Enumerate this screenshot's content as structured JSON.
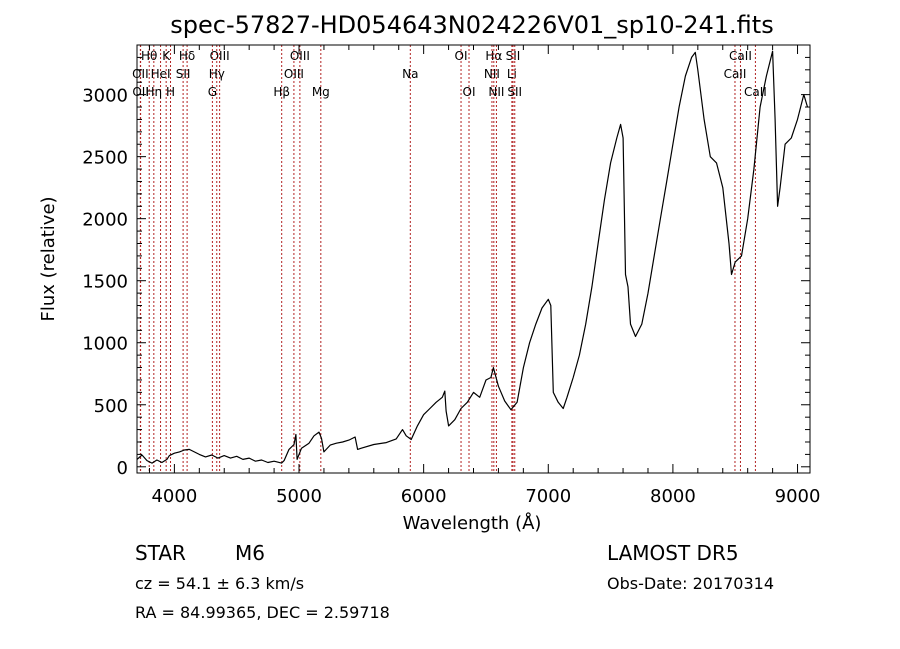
{
  "chart_data": {
    "type": "line",
    "title": "spec-57827-HD054643N024226V01_sp10-241.fits",
    "xlabel": "Wavelength (Å)",
    "ylabel": "Flux (relative)",
    "xlim": [
      3700,
      9100
    ],
    "ylim": [
      -50,
      3400
    ],
    "x_ticks": [
      4000,
      5000,
      6000,
      7000,
      8000,
      9000
    ],
    "y_ticks": [
      0,
      500,
      1000,
      1500,
      2000,
      2500,
      3000
    ],
    "grid": false,
    "line_color": "#000000",
    "marker_color": "#b22222",
    "series": [
      {
        "values": [
          [
            3700,
            60
          ],
          [
            3740,
            95
          ],
          [
            3780,
            50
          ],
          [
            3820,
            30
          ],
          [
            3860,
            55
          ],
          [
            3900,
            35
          ],
          [
            3940,
            60
          ],
          [
            3960,
            90
          ],
          [
            4000,
            110
          ],
          [
            4040,
            120
          ],
          [
            4080,
            135
          ],
          [
            4120,
            140
          ],
          [
            4160,
            120
          ],
          [
            4200,
            100
          ],
          [
            4250,
            80
          ],
          [
            4300,
            95
          ],
          [
            4350,
            70
          ],
          [
            4400,
            90
          ],
          [
            4450,
            70
          ],
          [
            4500,
            85
          ],
          [
            4550,
            60
          ],
          [
            4600,
            70
          ],
          [
            4650,
            45
          ],
          [
            4700,
            55
          ],
          [
            4750,
            35
          ],
          [
            4800,
            45
          ],
          [
            4860,
            30
          ],
          [
            4880,
            50
          ],
          [
            4920,
            140
          ],
          [
            4960,
            180
          ],
          [
            4975,
            260
          ],
          [
            4985,
            60
          ],
          [
            5020,
            150
          ],
          [
            5080,
            190
          ],
          [
            5120,
            250
          ],
          [
            5160,
            280
          ],
          [
            5180,
            230
          ],
          [
            5200,
            120
          ],
          [
            5250,
            175
          ],
          [
            5300,
            190
          ],
          [
            5350,
            200
          ],
          [
            5400,
            215
          ],
          [
            5450,
            240
          ],
          [
            5470,
            140
          ],
          [
            5500,
            150
          ],
          [
            5600,
            180
          ],
          [
            5700,
            195
          ],
          [
            5780,
            225
          ],
          [
            5830,
            300
          ],
          [
            5860,
            250
          ],
          [
            5900,
            220
          ],
          [
            5950,
            330
          ],
          [
            6000,
            420
          ],
          [
            6050,
            470
          ],
          [
            6100,
            520
          ],
          [
            6150,
            560
          ],
          [
            6170,
            610
          ],
          [
            6180,
            450
          ],
          [
            6200,
            330
          ],
          [
            6250,
            380
          ],
          [
            6300,
            470
          ],
          [
            6350,
            520
          ],
          [
            6400,
            600
          ],
          [
            6450,
            560
          ],
          [
            6500,
            700
          ],
          [
            6540,
            720
          ],
          [
            6560,
            800
          ],
          [
            6600,
            650
          ],
          [
            6650,
            530
          ],
          [
            6700,
            460
          ],
          [
            6750,
            520
          ],
          [
            6800,
            800
          ],
          [
            6850,
            1000
          ],
          [
            6900,
            1150
          ],
          [
            6950,
            1280
          ],
          [
            7000,
            1350
          ],
          [
            7020,
            1300
          ],
          [
            7040,
            600
          ],
          [
            7080,
            520
          ],
          [
            7120,
            470
          ],
          [
            7150,
            560
          ],
          [
            7200,
            720
          ],
          [
            7250,
            900
          ],
          [
            7300,
            1150
          ],
          [
            7350,
            1450
          ],
          [
            7400,
            1800
          ],
          [
            7450,
            2150
          ],
          [
            7500,
            2450
          ],
          [
            7550,
            2650
          ],
          [
            7580,
            2760
          ],
          [
            7600,
            2650
          ],
          [
            7620,
            1550
          ],
          [
            7640,
            1450
          ],
          [
            7660,
            1150
          ],
          [
            7700,
            1050
          ],
          [
            7750,
            1150
          ],
          [
            7800,
            1400
          ],
          [
            7850,
            1700
          ],
          [
            7900,
            2000
          ],
          [
            7950,
            2300
          ],
          [
            8000,
            2600
          ],
          [
            8050,
            2900
          ],
          [
            8100,
            3150
          ],
          [
            8150,
            3300
          ],
          [
            8180,
            3340
          ],
          [
            8200,
            3200
          ],
          [
            8250,
            2800
          ],
          [
            8300,
            2500
          ],
          [
            8350,
            2450
          ],
          [
            8400,
            2250
          ],
          [
            8450,
            1800
          ],
          [
            8470,
            1550
          ],
          [
            8500,
            1650
          ],
          [
            8550,
            1700
          ],
          [
            8600,
            2000
          ],
          [
            8650,
            2400
          ],
          [
            8700,
            2900
          ],
          [
            8750,
            3150
          ],
          [
            8800,
            3350
          ],
          [
            8820,
            2800
          ],
          [
            8840,
            2100
          ],
          [
            8860,
            2250
          ],
          [
            8900,
            2600
          ],
          [
            8950,
            2650
          ],
          [
            9000,
            2800
          ],
          [
            9050,
            3000
          ],
          [
            9080,
            2900
          ]
        ]
      }
    ],
    "line_markers": [
      {
        "label": "Hθ",
        "x": 3798,
        "row": 0
      },
      {
        "label": "OII",
        "x": 3727,
        "row": 1
      },
      {
        "label": "OII",
        "x": 3729,
        "row": 2
      },
      {
        "label": "HeI",
        "x": 3889,
        "row": 1
      },
      {
        "label": "Hη",
        "x": 3835,
        "row": 2
      },
      {
        "label": "K",
        "x": 3934,
        "row": 0
      },
      {
        "label": "H",
        "x": 3969,
        "row": 2
      },
      {
        "label": "SII",
        "x": 4070,
        "row": 1
      },
      {
        "label": "Hδ",
        "x": 4102,
        "row": 0
      },
      {
        "label": "OIII",
        "x": 4363,
        "row": 0
      },
      {
        "label": "Hγ",
        "x": 4340,
        "row": 1
      },
      {
        "label": "G",
        "x": 4305,
        "row": 2
      },
      {
        "label": "Hβ",
        "x": 4861,
        "row": 2
      },
      {
        "label": "OIII",
        "x": 5007,
        "row": 0
      },
      {
        "label": "OIII",
        "x": 4959,
        "row": 1
      },
      {
        "label": "Mg",
        "x": 5175,
        "row": 2
      },
      {
        "label": "Na",
        "x": 5893,
        "row": 1
      },
      {
        "label": "OI",
        "x": 6300,
        "row": 0
      },
      {
        "label": "OI",
        "x": 6364,
        "row": 2
      },
      {
        "label": "Hα",
        "x": 6563,
        "row": 0
      },
      {
        "label": "NII",
        "x": 6548,
        "row": 1
      },
      {
        "label": "NII",
        "x": 6584,
        "row": 2
      },
      {
        "label": "SII",
        "x": 6717,
        "row": 0
      },
      {
        "label": "Li",
        "x": 6708,
        "row": 1
      },
      {
        "label": "SII",
        "x": 6731,
        "row": 2
      },
      {
        "label": "CaII",
        "x": 8542,
        "row": 0
      },
      {
        "label": "CaII",
        "x": 8498,
        "row": 1
      },
      {
        "label": "CaII",
        "x": 8662,
        "row": 2
      }
    ]
  },
  "info": {
    "class_label": "STAR",
    "subclass": "M6",
    "survey": "LAMOST DR5",
    "cz_line": "cz = 54.1 ± 6.3 km/s",
    "obs_date": "Obs-Date: 20170314",
    "coords": "RA =  84.99365, DEC =   2.59718"
  }
}
